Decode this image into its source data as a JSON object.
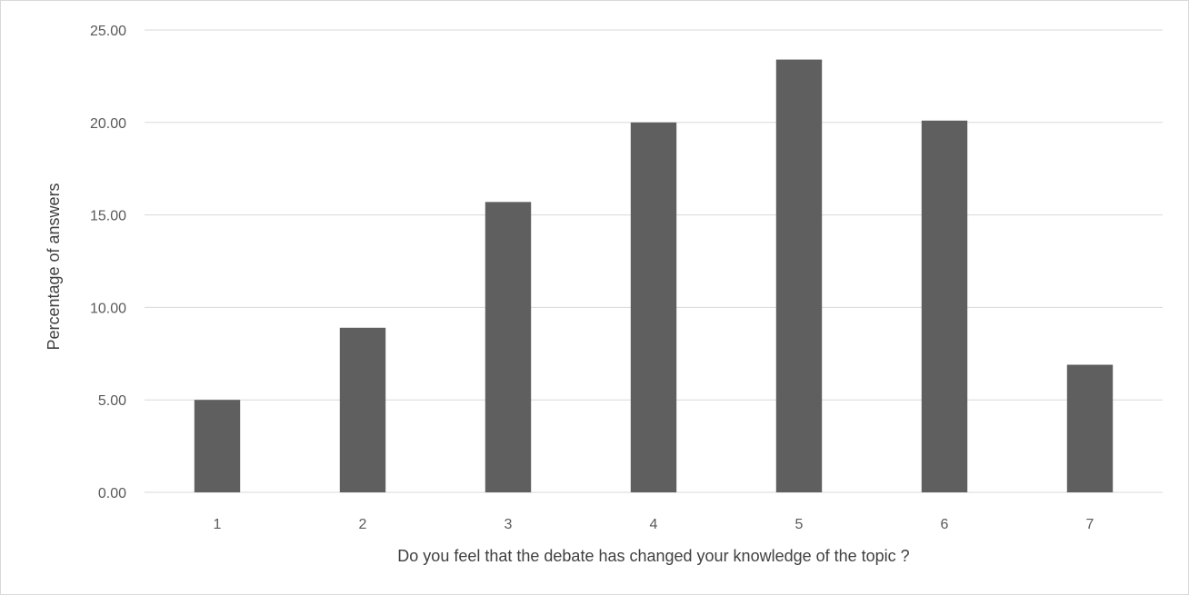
{
  "chart_data": {
    "type": "bar",
    "categories": [
      "1",
      "2",
      "3",
      "4",
      "5",
      "6",
      "7"
    ],
    "values": [
      5.0,
      8.9,
      15.7,
      20.0,
      23.4,
      20.1,
      6.9
    ],
    "title": "",
    "xlabel": "Do you feel that the debate has changed your knowledge of the topic ?",
    "ylabel": "Percentage of answers",
    "ylim": [
      0,
      25
    ],
    "yticks": [
      "0.00",
      "5.00",
      "10.00",
      "15.00",
      "20.00",
      "25.00"
    ],
    "grid": true,
    "legend": "none",
    "colors": {
      "bar": "#5f5f5f",
      "grid": "#d9d9d9",
      "tick_text": "#595959",
      "axis_title": "#404040"
    }
  }
}
